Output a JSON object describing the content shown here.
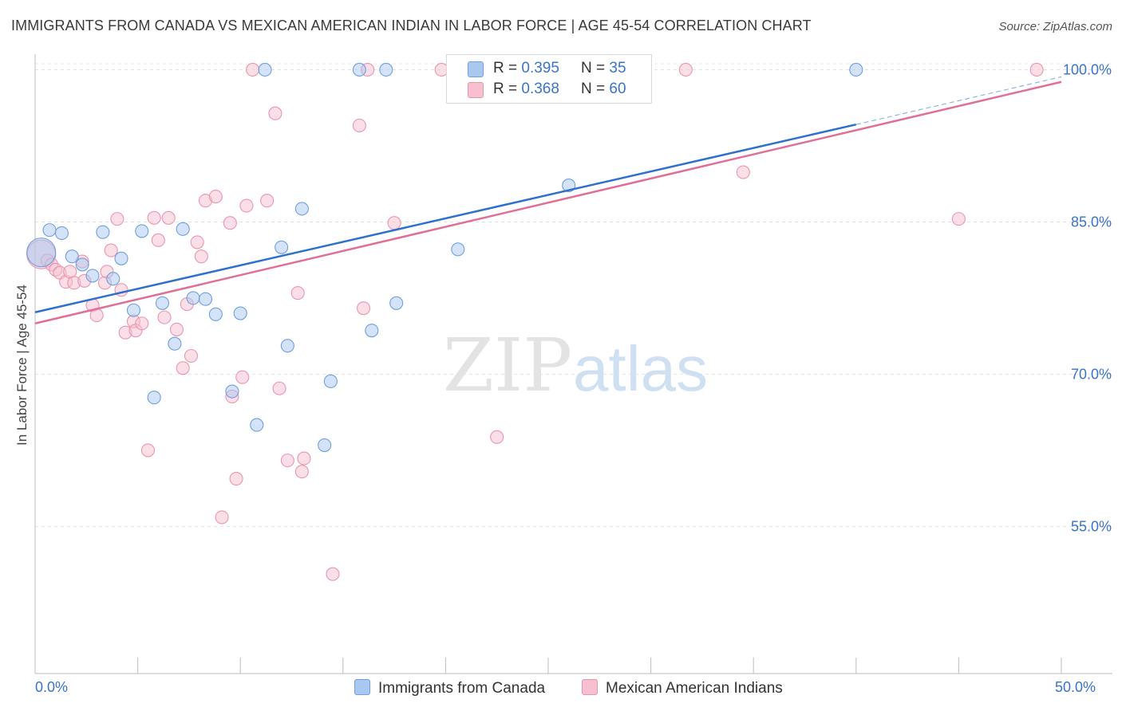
{
  "title": "IMMIGRANTS FROM CANADA VS MEXICAN AMERICAN INDIAN IN LABOR FORCE | AGE 45-54 CORRELATION CHART",
  "source": "Source: ZipAtlas.com",
  "watermark": {
    "zip": "ZIP",
    "atlas": "atlas"
  },
  "legend": {
    "r_label": "R = ",
    "n_label": "N = ",
    "rows": [
      {
        "r": "0.395",
        "n": "35",
        "color": "#a9c8ef",
        "border": "#6f9fdc"
      },
      {
        "r": "0.368",
        "n": "60",
        "color": "#f7bfd0",
        "border": "#e995b0"
      }
    ]
  },
  "chart_data": {
    "type": "scatter",
    "title": "IMMIGRANTS FROM CANADA VS MEXICAN AMERICAN INDIAN IN LABOR FORCE | AGE 45-54 CORRELATION CHART",
    "xlabel": "",
    "ylabel": "In Labor Force | Age 45-54",
    "xlim": [
      0,
      50
    ],
    "ylim": [
      40.5,
      102
    ],
    "x_tick_labels": [
      "0.0%",
      "50.0%"
    ],
    "y_ticks": [
      55,
      70,
      85,
      100
    ],
    "y_tick_labels": [
      "55.0%",
      "70.0%",
      "85.0%",
      "100.0%"
    ],
    "grid": true,
    "legend_position": "top-center",
    "series": [
      {
        "name": "Immigrants from Canada",
        "color": "#a9c8ef",
        "stroke": "#6f9fdc",
        "trend_color": "#2f6fce",
        "trend": {
          "x0": 0,
          "y0": 76.1,
          "x1": 40,
          "y1": 94.6,
          "dash_to_x": 50,
          "dash_to_y": 99.3
        },
        "points": [
          {
            "x": 0.3,
            "y": 82.0,
            "big": true
          },
          {
            "x": 0.7,
            "y": 84.2
          },
          {
            "x": 1.3,
            "y": 83.9
          },
          {
            "x": 1.8,
            "y": 81.6
          },
          {
            "x": 2.3,
            "y": 80.8
          },
          {
            "x": 2.8,
            "y": 79.7
          },
          {
            "x": 3.3,
            "y": 84.0
          },
          {
            "x": 3.8,
            "y": 79.4
          },
          {
            "x": 4.2,
            "y": 81.4
          },
          {
            "x": 4.8,
            "y": 76.3
          },
          {
            "x": 5.2,
            "y": 84.1
          },
          {
            "x": 5.8,
            "y": 67.7
          },
          {
            "x": 6.2,
            "y": 77.0
          },
          {
            "x": 6.8,
            "y": 73.0
          },
          {
            "x": 7.2,
            "y": 84.3
          },
          {
            "x": 7.7,
            "y": 77.5
          },
          {
            "x": 8.3,
            "y": 77.4
          },
          {
            "x": 8.8,
            "y": 75.9
          },
          {
            "x": 9.6,
            "y": 68.3
          },
          {
            "x": 10.0,
            "y": 76.0
          },
          {
            "x": 10.8,
            "y": 65.0
          },
          {
            "x": 11.2,
            "y": 100.0
          },
          {
            "x": 12.0,
            "y": 82.5
          },
          {
            "x": 12.3,
            "y": 72.8
          },
          {
            "x": 13.0,
            "y": 86.3
          },
          {
            "x": 14.1,
            "y": 63.0
          },
          {
            "x": 14.4,
            "y": 69.3
          },
          {
            "x": 15.8,
            "y": 100.0
          },
          {
            "x": 16.4,
            "y": 74.3
          },
          {
            "x": 17.1,
            "y": 100.0
          },
          {
            "x": 17.6,
            "y": 77.0
          },
          {
            "x": 20.6,
            "y": 82.3
          },
          {
            "x": 26.0,
            "y": 88.6
          },
          {
            "x": 26.3,
            "y": 100.0
          },
          {
            "x": 40.0,
            "y": 100.0
          }
        ]
      },
      {
        "name": "Mexican American Indians",
        "color": "#f7bfd0",
        "stroke": "#e995b0",
        "trend_color": "#e06f98",
        "trend": {
          "x0": 0,
          "y0": 75.0,
          "x1": 50,
          "y1": 98.8
        },
        "points": [
          {
            "x": 0.3,
            "y": 81.8,
            "big": true
          },
          {
            "x": 0.6,
            "y": 81.2
          },
          {
            "x": 0.8,
            "y": 80.8
          },
          {
            "x": 1.0,
            "y": 80.3
          },
          {
            "x": 1.2,
            "y": 80.0
          },
          {
            "x": 1.5,
            "y": 79.1
          },
          {
            "x": 1.7,
            "y": 80.1
          },
          {
            "x": 1.9,
            "y": 79.0
          },
          {
            "x": 2.3,
            "y": 81.1
          },
          {
            "x": 2.4,
            "y": 79.2
          },
          {
            "x": 2.8,
            "y": 76.8
          },
          {
            "x": 3.0,
            "y": 75.8
          },
          {
            "x": 3.4,
            "y": 79.0
          },
          {
            "x": 3.5,
            "y": 80.1
          },
          {
            "x": 3.7,
            "y": 82.2
          },
          {
            "x": 4.0,
            "y": 85.3
          },
          {
            "x": 4.2,
            "y": 78.3
          },
          {
            "x": 4.4,
            "y": 74.1
          },
          {
            "x": 4.8,
            "y": 75.2
          },
          {
            "x": 4.9,
            "y": 74.3
          },
          {
            "x": 5.2,
            "y": 75.0
          },
          {
            "x": 5.5,
            "y": 62.5
          },
          {
            "x": 5.8,
            "y": 85.4
          },
          {
            "x": 6.0,
            "y": 83.2
          },
          {
            "x": 6.3,
            "y": 75.6
          },
          {
            "x": 6.5,
            "y": 85.4
          },
          {
            "x": 6.9,
            "y": 74.4
          },
          {
            "x": 7.2,
            "y": 70.6
          },
          {
            "x": 7.4,
            "y": 76.9
          },
          {
            "x": 7.6,
            "y": 71.8
          },
          {
            "x": 7.9,
            "y": 83.0
          },
          {
            "x": 8.1,
            "y": 81.6
          },
          {
            "x": 8.3,
            "y": 87.1
          },
          {
            "x": 8.8,
            "y": 87.5
          },
          {
            "x": 9.1,
            "y": 55.9
          },
          {
            "x": 9.5,
            "y": 84.9
          },
          {
            "x": 9.6,
            "y": 67.8
          },
          {
            "x": 9.8,
            "y": 59.7
          },
          {
            "x": 10.1,
            "y": 69.7
          },
          {
            "x": 10.3,
            "y": 86.6
          },
          {
            "x": 10.6,
            "y": 100.0
          },
          {
            "x": 11.3,
            "y": 87.1
          },
          {
            "x": 11.7,
            "y": 95.7
          },
          {
            "x": 11.9,
            "y": 68.6
          },
          {
            "x": 12.3,
            "y": 61.5
          },
          {
            "x": 12.8,
            "y": 78.0
          },
          {
            "x": 13.0,
            "y": 60.4
          },
          {
            "x": 13.1,
            "y": 61.7
          },
          {
            "x": 14.5,
            "y": 50.3
          },
          {
            "x": 15.8,
            "y": 94.5
          },
          {
            "x": 16.0,
            "y": 76.5
          },
          {
            "x": 16.2,
            "y": 100.0
          },
          {
            "x": 17.5,
            "y": 84.9
          },
          {
            "x": 19.8,
            "y": 100.0
          },
          {
            "x": 22.5,
            "y": 63.8
          },
          {
            "x": 26.8,
            "y": 100.0
          },
          {
            "x": 31.7,
            "y": 100.0
          },
          {
            "x": 34.5,
            "y": 89.9
          },
          {
            "x": 45.0,
            "y": 85.3
          },
          {
            "x": 48.8,
            "y": 100.0
          }
        ]
      }
    ]
  }
}
